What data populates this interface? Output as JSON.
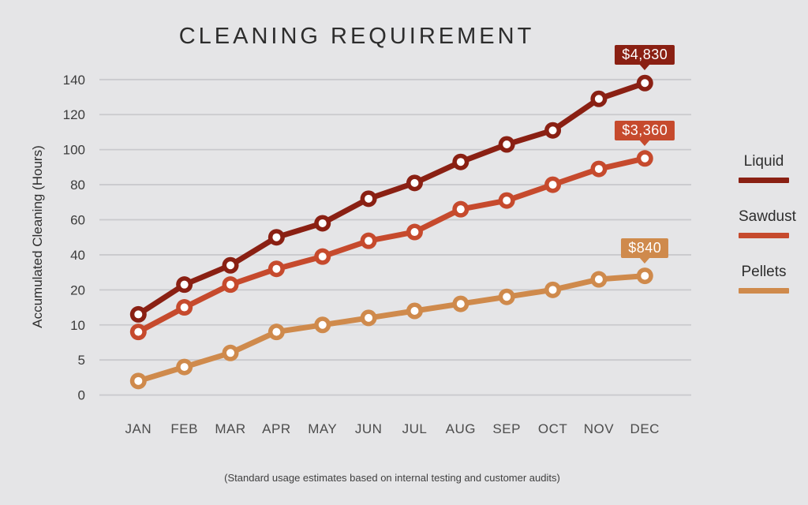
{
  "title": "CLEANING REQUIREMENT",
  "y_axis_label": "Accumulated Cleaning (Hours)",
  "caption": "(Standard usage estimates based on internal testing and customer audits)",
  "colors": {
    "background": "#E5E5E7",
    "gridline": "#C9C9CD",
    "title_text": "#2D2D2D",
    "tick_text": "#3C3C3C",
    "month_text": "#4C4C4C",
    "legend_text": "#2E2E2E",
    "badge_text": "#FFFFFF",
    "liquid": "#8A2013",
    "sawdust": "#C64A2D",
    "pellets": "#CF8A4C"
  },
  "chart_data": {
    "type": "line",
    "title": "CLEANING REQUIREMENT",
    "xlabel": "",
    "ylabel": "Accumulated Cleaning (Hours)",
    "categories": [
      "JAN",
      "FEB",
      "MAR",
      "APR",
      "MAY",
      "JUN",
      "JUL",
      "AUG",
      "SEP",
      "OCT",
      "NOV",
      "DEC"
    ],
    "yticks": [
      0,
      5,
      10,
      20,
      40,
      60,
      80,
      100,
      120,
      140
    ],
    "y_axis_note": "non-linear y scale: tick values 0,5,10,20,40,60,80,100,120,140 are evenly spaced",
    "grid": true,
    "legend_position": "right",
    "series": [
      {
        "name": "Liquid",
        "color": "#8A2013",
        "end_label": "$4,830",
        "values": [
          13,
          23,
          34,
          50,
          58,
          72,
          81,
          93,
          103,
          111,
          129,
          138
        ]
      },
      {
        "name": "Sawdust",
        "color": "#C64A2D",
        "end_label": "$3,360",
        "values": [
          9,
          15,
          23,
          32,
          39,
          48,
          53,
          66,
          71,
          80,
          89,
          95
        ]
      },
      {
        "name": "Pellets",
        "color": "#CF8A4C",
        "end_label": "$840",
        "values": [
          2,
          4,
          6,
          9,
          10,
          12,
          14,
          16,
          18,
          20,
          26,
          28
        ]
      }
    ]
  }
}
